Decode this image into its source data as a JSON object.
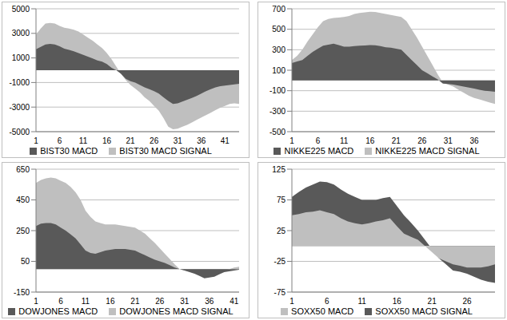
{
  "chart_data": [
    {
      "type": "area",
      "categories": [
        "1",
        null,
        null,
        null,
        null,
        "6",
        null,
        null,
        null,
        null,
        "11",
        null,
        null,
        null,
        null,
        "16",
        null,
        null,
        null,
        null,
        "21",
        null,
        null,
        null,
        null,
        "26",
        null,
        null,
        null,
        null,
        "31",
        null,
        null,
        null,
        null,
        "36",
        null,
        null,
        null,
        null,
        "41",
        null,
        null,
        null
      ],
      "series": [
        {
          "name": "BIST30 MACD",
          "color": "#595959",
          "values": [
            1700,
            1900,
            2100,
            2150,
            2100,
            1950,
            1750,
            1650,
            1550,
            1400,
            1250,
            1100,
            950,
            800,
            700,
            500,
            200,
            0,
            -300,
            -700,
            -900,
            -1000,
            -1200,
            -1400,
            -1550,
            -1700,
            -1900,
            -2200,
            -2500,
            -2750,
            -2700,
            -2550,
            -2400,
            -2250,
            -2100,
            -1900,
            -1700,
            -1550,
            -1400,
            -1300,
            -1250,
            -1200,
            -1150,
            -1100
          ]
        },
        {
          "name": "BIST30 MACD SIGNAL",
          "color": "#bfbfbf",
          "values": [
            2900,
            3400,
            3800,
            3850,
            3800,
            3600,
            3450,
            3400,
            3300,
            3150,
            2900,
            2650,
            2400,
            2100,
            1800,
            1400,
            900,
            300,
            -300,
            -800,
            -1200,
            -1500,
            -1800,
            -2200,
            -2500,
            -2900,
            -3300,
            -3900,
            -4600,
            -4800,
            -4750,
            -4600,
            -4450,
            -4250,
            -4050,
            -3850,
            -3650,
            -3450,
            -3250,
            -3050,
            -2900,
            -2750,
            -2700,
            -2750
          ]
        }
      ],
      "ylim": [
        -5000,
        5000
      ],
      "yticks": [
        -5000,
        -3000,
        -1000,
        1000,
        3000,
        5000
      ],
      "grid": true,
      "legend": "bottom"
    },
    {
      "type": "area",
      "categories": [
        "1",
        null,
        null,
        null,
        null,
        "6",
        null,
        null,
        null,
        null,
        "11",
        null,
        null,
        null,
        null,
        "16",
        null,
        null,
        null,
        null,
        "21",
        null,
        null,
        null,
        null,
        "26",
        null,
        null,
        null,
        null,
        "31",
        null,
        null,
        null,
        null,
        "36",
        null,
        null,
        null,
        null
      ],
      "series": [
        {
          "name": "NIKKE225 MACD",
          "color": "#595959",
          "values": [
            170,
            185,
            200,
            240,
            280,
            310,
            340,
            350,
            360,
            345,
            330,
            330,
            335,
            340,
            342,
            345,
            343,
            335,
            325,
            320,
            310,
            300,
            250,
            200,
            150,
            100,
            70,
            40,
            10,
            -30,
            -35,
            -40,
            -50,
            -60,
            -70,
            -80,
            -90,
            -100,
            -105,
            -110
          ]
        },
        {
          "name": "NIKKE225 MACD SIGNAL",
          "color": "#bfbfbf",
          "values": [
            200,
            240,
            300,
            380,
            450,
            520,
            580,
            600,
            610,
            615,
            620,
            630,
            650,
            660,
            665,
            670,
            668,
            660,
            650,
            640,
            630,
            620,
            580,
            500,
            420,
            330,
            240,
            150,
            60,
            -20,
            -40,
            -60,
            -90,
            -120,
            -150,
            -170,
            -185,
            -200,
            -215,
            -230
          ]
        }
      ],
      "ylim": [
        -500,
        700
      ],
      "yticks": [
        -500,
        -300,
        -100,
        100,
        300,
        500,
        700
      ],
      "grid": true,
      "legend": "bottom"
    },
    {
      "type": "area",
      "categories": [
        "1",
        null,
        null,
        null,
        null,
        "6",
        null,
        null,
        null,
        null,
        "11",
        null,
        null,
        null,
        null,
        "16",
        null,
        null,
        null,
        null,
        "21",
        null,
        null,
        null,
        null,
        "26",
        null,
        null,
        null,
        null,
        "31",
        null,
        null,
        null,
        null,
        "36",
        null,
        null,
        null,
        null,
        "41",
        null
      ],
      "series": [
        {
          "name": "DOWJONES MACD",
          "color": "#595959",
          "values": [
            280,
            295,
            300,
            300,
            290,
            270,
            250,
            225,
            200,
            160,
            120,
            105,
            100,
            110,
            120,
            125,
            130,
            130,
            130,
            125,
            120,
            105,
            90,
            75,
            60,
            50,
            40,
            25,
            10,
            0,
            -10,
            -20,
            -30,
            -45,
            -60,
            -55,
            -50,
            -35,
            -20,
            -15,
            -10,
            -5
          ]
        },
        {
          "name": "DOWJONES MACD SIGNAL",
          "color": "#bfbfbf",
          "values": [
            560,
            580,
            590,
            595,
            590,
            575,
            560,
            535,
            500,
            450,
            380,
            340,
            310,
            300,
            290,
            290,
            290,
            285,
            280,
            275,
            270,
            250,
            230,
            200,
            170,
            135,
            100,
            65,
            30,
            0,
            -10,
            -15,
            -20,
            -25,
            -30,
            -25,
            -20,
            -15,
            -10,
            0,
            10,
            15
          ]
        }
      ],
      "ylim": [
        -150,
        650
      ],
      "yticks": [
        -150,
        50,
        250,
        450,
        650
      ],
      "grid": true,
      "legend": "bottom"
    },
    {
      "type": "area",
      "categories": [
        "1",
        null,
        null,
        null,
        null,
        "6",
        null,
        null,
        null,
        null,
        "11",
        null,
        null,
        null,
        null,
        "16",
        null,
        null,
        null,
        null,
        "21",
        null,
        null,
        null,
        null,
        "26",
        null,
        null,
        null,
        null
      ],
      "series": [
        {
          "name": "SOXX50 MACD",
          "color": "#bfbfbf",
          "values": [
            50,
            52,
            55,
            56,
            58,
            55,
            52,
            45,
            40,
            37,
            35,
            37,
            40,
            42,
            45,
            32,
            20,
            15,
            10,
            0,
            -10,
            -20,
            -25,
            -30,
            -32,
            -35,
            -35,
            -35,
            -33,
            -30
          ]
        },
        {
          "name": "SOXX50 MACD SIGNAL",
          "color": "#595959",
          "values": [
            80,
            88,
            95,
            100,
            105,
            104,
            100,
            92,
            85,
            80,
            75,
            75,
            75,
            78,
            80,
            65,
            50,
            38,
            25,
            10,
            -5,
            -20,
            -30,
            -40,
            -42,
            -45,
            -50,
            -55,
            -58,
            -60
          ]
        }
      ],
      "ylim": [
        -75,
        125
      ],
      "yticks": [
        -75,
        -25,
        25,
        75,
        125
      ],
      "grid": true,
      "legend": "bottom"
    }
  ]
}
